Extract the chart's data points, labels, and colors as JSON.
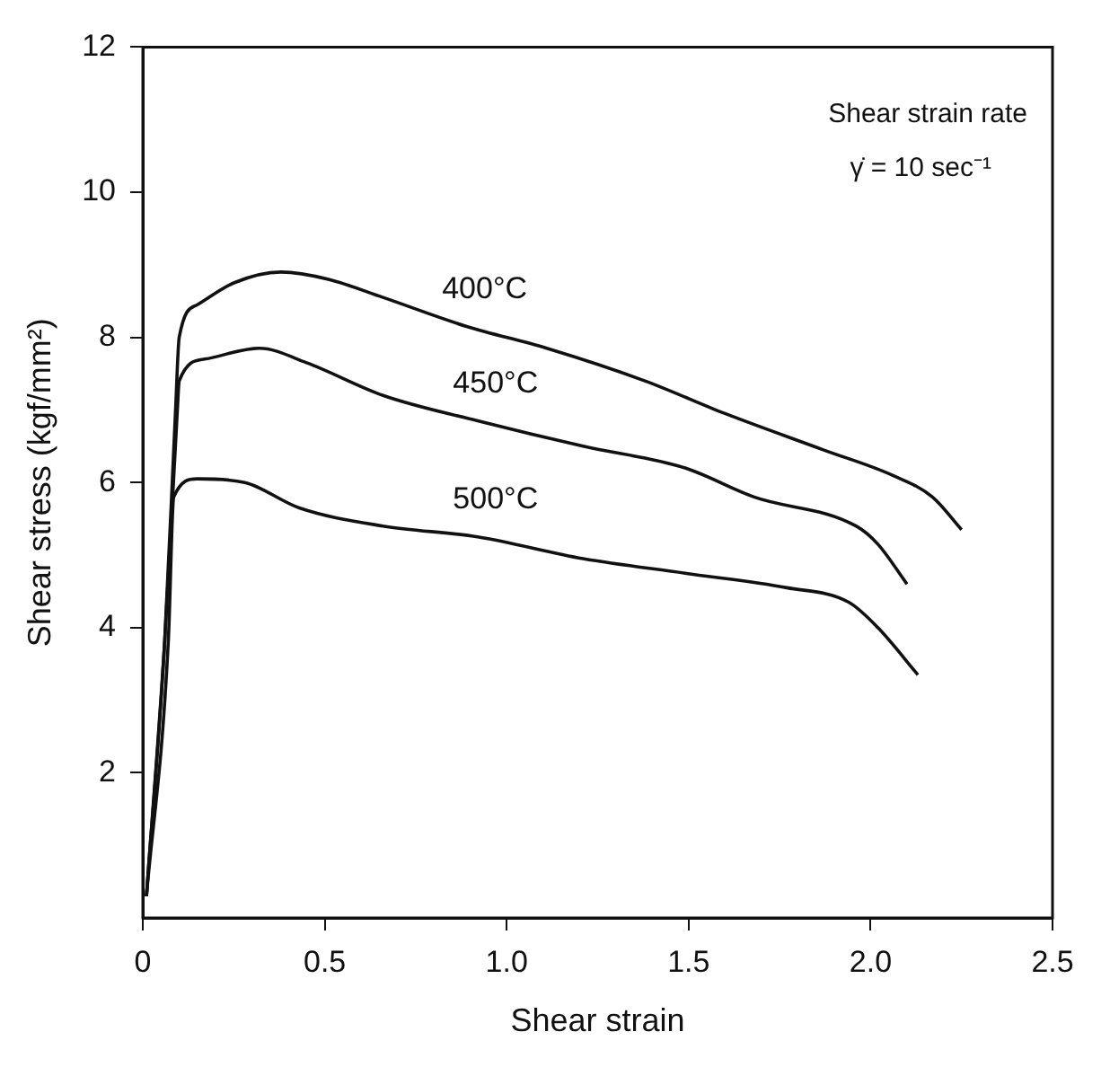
{
  "chart_data": {
    "type": "line",
    "xlabel": "Shear strain",
    "ylabel": "Shear stress (kgf/mm²)",
    "annotations": [
      "Shear strain rate",
      "γ̇ = 10 sec⁻¹"
    ],
    "xlim": [
      0,
      2.5
    ],
    "xticks": [
      0,
      0.5,
      {
        "value": 1,
        "label": "1.0"
      },
      1.5,
      {
        "value": 2,
        "label": "2.0"
      },
      2.5
    ],
    "ylim": [
      0,
      12
    ],
    "yticks": [
      2,
      4,
      6,
      8,
      10,
      12
    ],
    "grid": false,
    "legend": false,
    "marker": "none",
    "line_style": "solid",
    "series": [
      {
        "name": "400°C",
        "color": "#111111",
        "x": [
          0.01,
          0.06,
          0.09,
          0.1,
          0.15,
          0.25,
          0.38,
          0.51,
          0.66,
          0.89,
          1.11,
          1.38,
          1.6,
          1.87,
          2.06,
          2.17,
          2.25
        ],
        "values": [
          0.3,
          3.8,
          7,
          8,
          8.45,
          8.75,
          8.9,
          8.8,
          8.55,
          8.15,
          7.85,
          7.4,
          6.95,
          6.45,
          6.1,
          5.8,
          5.35
        ]
      },
      {
        "name": "450°C",
        "color": "#111111",
        "x": [
          0.01,
          0.06,
          0.095,
          0.1,
          0.17,
          0.32,
          0.45,
          0.66,
          0.92,
          1.21,
          1.49,
          1.68,
          1.96,
          2.02,
          2.1
        ],
        "values": [
          0.3,
          3.8,
          7,
          7.4,
          7.7,
          7.85,
          7.65,
          7.2,
          6.85,
          6.5,
          6.2,
          5.8,
          5.4,
          5.15,
          4.6
        ]
      },
      {
        "name": "500°C",
        "color": "#111111",
        "x": [
          0.01,
          0.07,
          0.085,
          0.15,
          0.28,
          0.43,
          0.66,
          0.92,
          1.21,
          1.49,
          1.77,
          1.94,
          2.02,
          2.13
        ],
        "values": [
          0.3,
          3.8,
          5.8,
          6.05,
          6,
          5.65,
          5.4,
          5.25,
          4.95,
          4.75,
          4.55,
          4.35,
          4,
          3.35
        ]
      }
    ]
  }
}
